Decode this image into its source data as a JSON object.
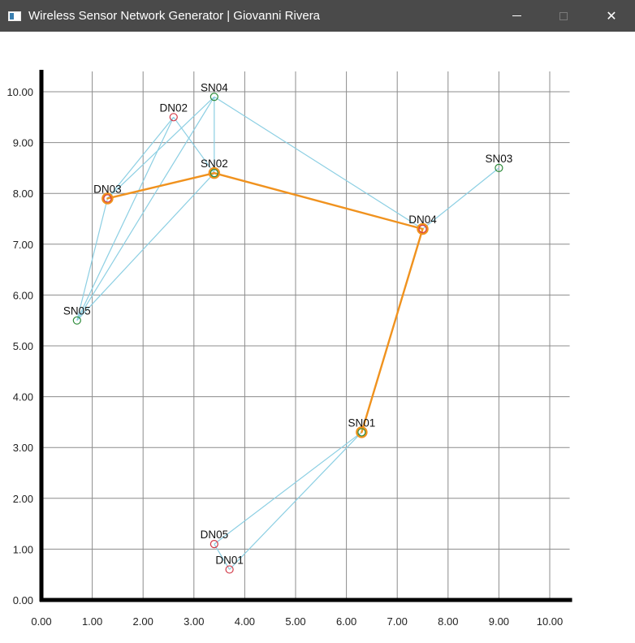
{
  "window": {
    "title": "Wireless Sensor Network Generator | Giovanni Rivera",
    "minimize_icon": "minimize-icon",
    "maximize_icon": "maximize-icon",
    "close_icon": "close-icon",
    "close_glyph": "✕"
  },
  "colors": {
    "titlebar": "#4a4a4a",
    "grid": "#8c8c8c",
    "axis": "#000000",
    "link": "#8ccfe3",
    "route": "#f0921e",
    "sensor_node": "#2e8b3a",
    "data_node": "#d23a48"
  },
  "chart_data": {
    "type": "scatter",
    "xlim": [
      0,
      10.4
    ],
    "ylim": [
      0,
      10.4
    ],
    "x_ticks": [
      "0.00",
      "1.00",
      "2.00",
      "3.00",
      "4.00",
      "5.00",
      "6.00",
      "7.00",
      "8.00",
      "9.00",
      "10.00"
    ],
    "y_ticks": [
      "0.00",
      "1.00",
      "2.00",
      "3.00",
      "4.00",
      "5.00",
      "6.00",
      "7.00",
      "8.00",
      "9.00",
      "10.00"
    ],
    "grid": true,
    "nodes": [
      {
        "id": "SN01",
        "kind": "sensor",
        "x": 6.3,
        "y": 3.3,
        "on_route": true
      },
      {
        "id": "SN02",
        "kind": "sensor",
        "x": 3.4,
        "y": 8.4,
        "on_route": true
      },
      {
        "id": "SN03",
        "kind": "sensor",
        "x": 9.0,
        "y": 8.5,
        "on_route": false
      },
      {
        "id": "SN04",
        "kind": "sensor",
        "x": 3.4,
        "y": 9.9,
        "on_route": false
      },
      {
        "id": "SN05",
        "kind": "sensor",
        "x": 0.7,
        "y": 5.5,
        "on_route": false
      },
      {
        "id": "DN01",
        "kind": "data",
        "x": 3.7,
        "y": 0.6,
        "on_route": false
      },
      {
        "id": "DN02",
        "kind": "data",
        "x": 2.6,
        "y": 9.5,
        "on_route": false
      },
      {
        "id": "DN03",
        "kind": "data",
        "x": 1.3,
        "y": 7.9,
        "on_route": true
      },
      {
        "id": "DN04",
        "kind": "data",
        "x": 7.5,
        "y": 7.3,
        "on_route": true
      },
      {
        "id": "DN05",
        "kind": "data",
        "x": 3.4,
        "y": 1.1,
        "on_route": false
      }
    ],
    "links": [
      [
        "SN01",
        "DN05"
      ],
      [
        "SN01",
        "DN01"
      ],
      [
        "DN05",
        "DN01"
      ],
      [
        "SN04",
        "DN04"
      ],
      [
        "SN03",
        "DN04"
      ],
      [
        "SN04",
        "DN03"
      ],
      [
        "SN04",
        "SN05"
      ],
      [
        "SN04",
        "SN02"
      ],
      [
        "DN02",
        "DN03"
      ],
      [
        "DN02",
        "SN05"
      ],
      [
        "DN02",
        "SN02"
      ],
      [
        "SN05",
        "DN03"
      ],
      [
        "SN05",
        "SN02"
      ]
    ],
    "route": [
      "DN03",
      "SN02",
      "DN04",
      "SN01"
    ]
  }
}
